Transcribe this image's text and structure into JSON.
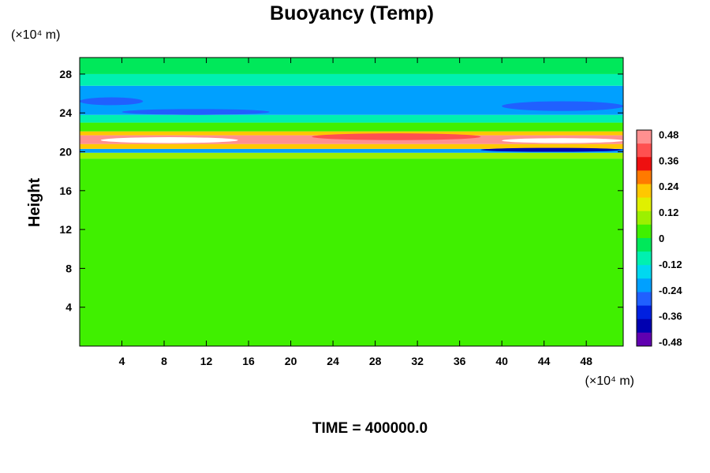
{
  "chart_data": {
    "type": "heatmap",
    "title": "Buoyancy (Temp)",
    "xlabel": "",
    "ylabel": "Height",
    "x_unit": "(×10⁴ m)",
    "y_unit": "(×10⁴ m)",
    "xlim": [
      0,
      51.5
    ],
    "ylim": [
      0,
      29.7
    ],
    "x_ticks": [
      4,
      8,
      12,
      16,
      20,
      24,
      28,
      32,
      36,
      40,
      44,
      48
    ],
    "y_ticks": [
      4,
      8,
      12,
      16,
      20,
      24,
      28
    ],
    "colorbar": {
      "range": [
        -0.5,
        0.5
      ],
      "ticks": [
        "0.48",
        "0.36",
        "0.24",
        "0.12",
        "0",
        "-0.12",
        "-0.24",
        "-0.36",
        "-0.48"
      ],
      "tick_values": [
        0.48,
        0.36,
        0.24,
        0.12,
        0,
        -0.12,
        -0.24,
        -0.36,
        -0.48
      ],
      "colors": [
        "#ff9090",
        "#ff5050",
        "#ee1010",
        "#ff7a00",
        "#ffc800",
        "#e0f000",
        "#9cf000",
        "#40f000",
        "#00e85a",
        "#00f0b0",
        "#00d8f0",
        "#00a0ff",
        "#2060ff",
        "#0020e0",
        "#0000b0",
        "#6000b0"
      ]
    },
    "bands": [
      {
        "y0": 0,
        "y1": 19.3,
        "value": 0.02
      },
      {
        "y0": 19.3,
        "y1": 19.9,
        "value": 0.08
      },
      {
        "y0": 19.9,
        "y1": 20.3,
        "value": -0.2
      },
      {
        "y0": 20.3,
        "y1": 20.8,
        "value": 0.24
      },
      {
        "y0": 20.8,
        "y1": 21.7,
        "value": 0.45
      },
      {
        "y0": 21.7,
        "y1": 22.1,
        "value": 0.24
      },
      {
        "y0": 22.1,
        "y1": 23.0,
        "value": 0.06
      },
      {
        "y0": 23.0,
        "y1": 23.8,
        "value": -0.1
      },
      {
        "y0": 23.8,
        "y1": 26.8,
        "value": -0.2
      },
      {
        "y0": 26.8,
        "y1": 28.0,
        "value": -0.12
      },
      {
        "y0": 28.0,
        "y1": 29.7,
        "value": -0.04
      }
    ],
    "features": [
      {
        "x0": 2,
        "x1": 15,
        "y0": 20.9,
        "y1": 21.5,
        "value": 0.5
      },
      {
        "x0": 40,
        "x1": 51.5,
        "y0": 20.9,
        "y1": 21.4,
        "value": 0.5
      },
      {
        "x0": 22,
        "x1": 38,
        "y0": 21.2,
        "y1": 21.9,
        "value": 0.42
      },
      {
        "x0": 38,
        "x1": 51.5,
        "y0": 20.0,
        "y1": 20.4,
        "value": -0.38
      },
      {
        "x0": 4,
        "x1": 18,
        "y0": 23.8,
        "y1": 24.4,
        "value": -0.26
      },
      {
        "x0": 40,
        "x1": 51.5,
        "y0": 24.2,
        "y1": 25.2,
        "value": -0.26
      },
      {
        "x0": 0,
        "x1": 6,
        "y0": 24.8,
        "y1": 25.6,
        "value": -0.26
      }
    ],
    "annotation": "TIME = 400000.0"
  }
}
